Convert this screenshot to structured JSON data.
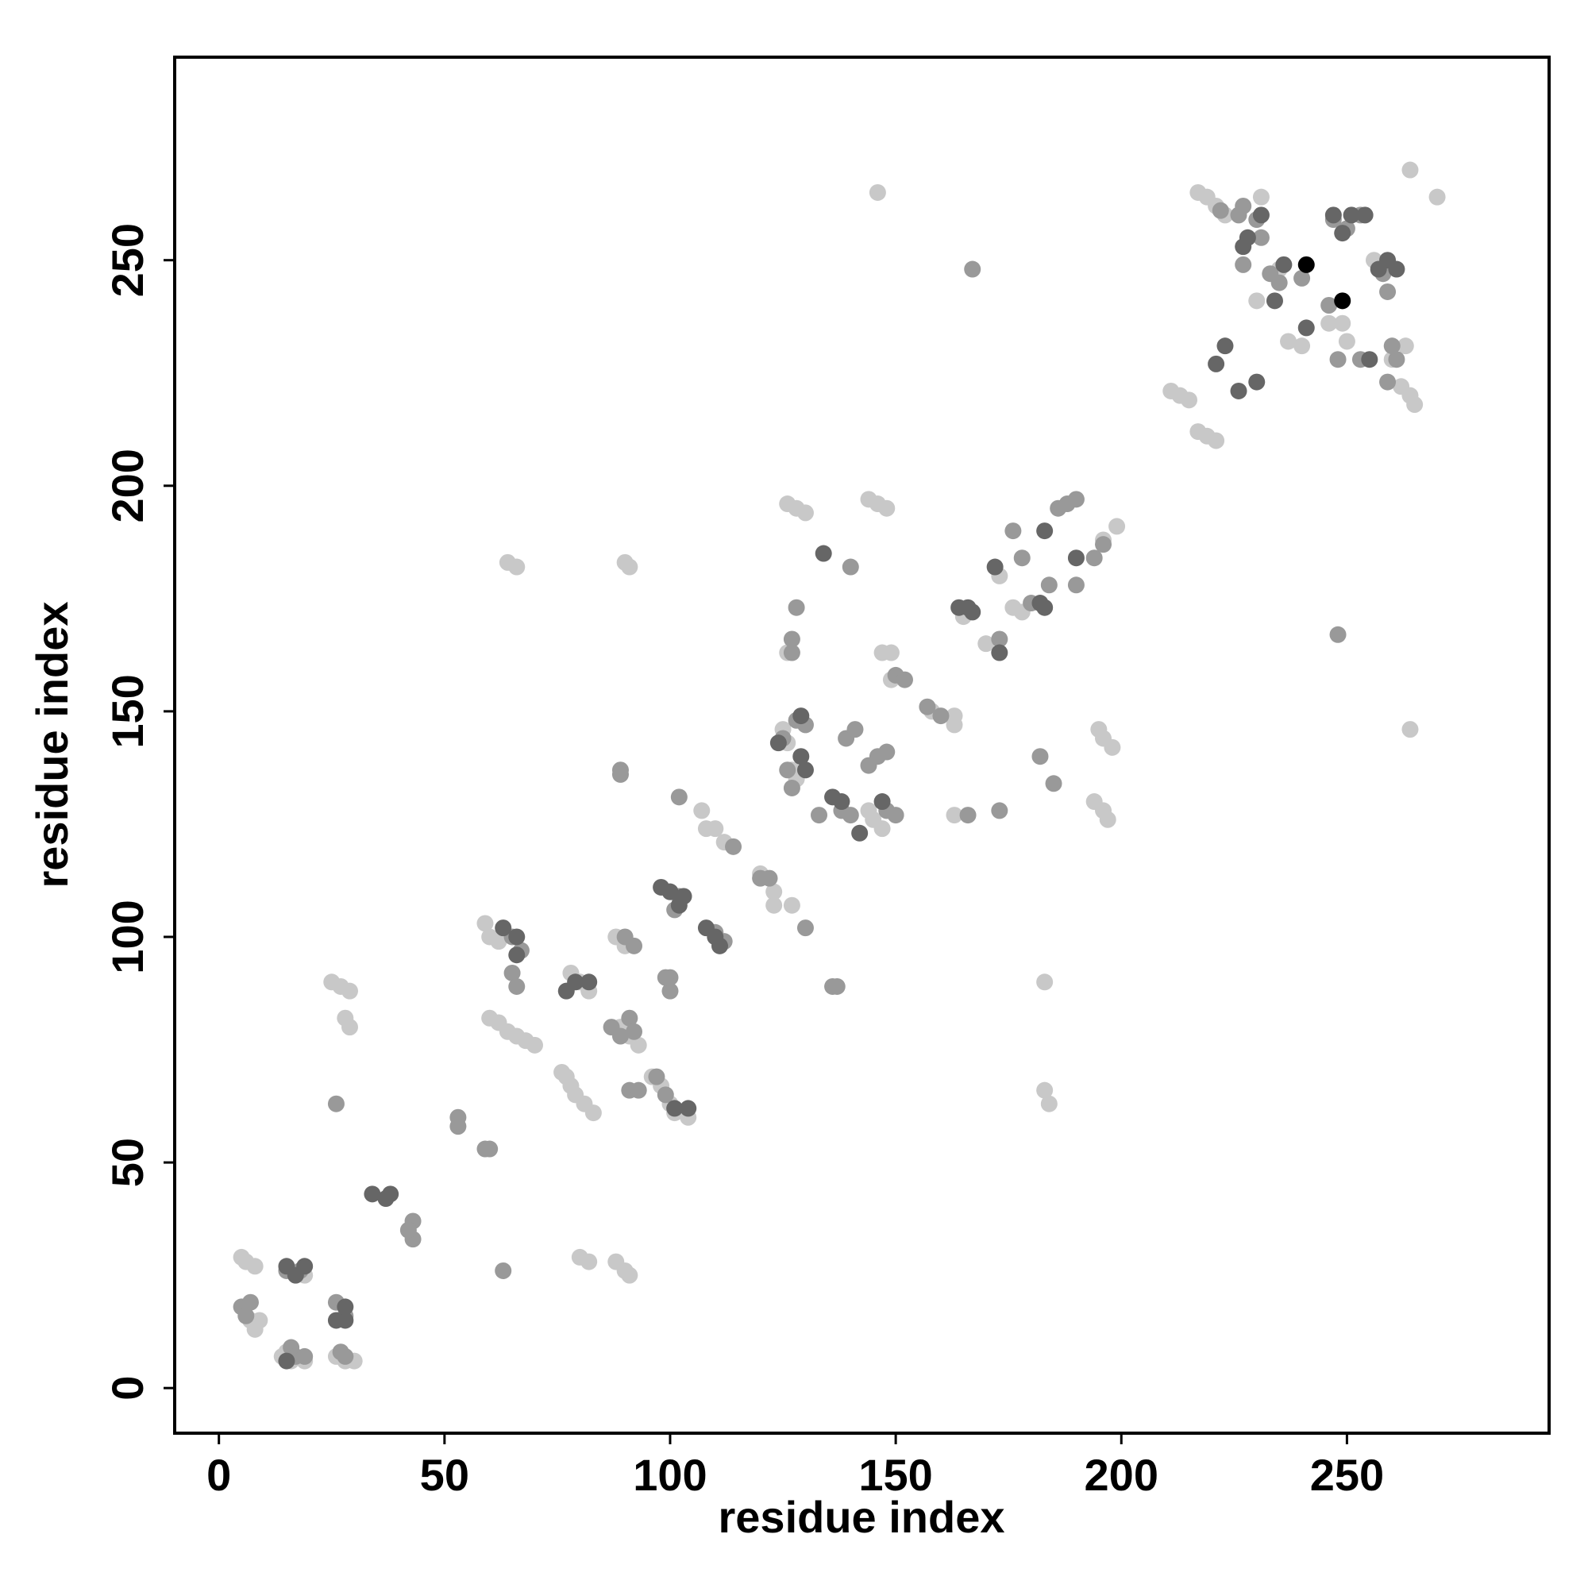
{
  "chart_data": {
    "type": "scatter",
    "xlabel": "residue index",
    "ylabel": "residue index",
    "xlim": [
      -9.8,
      294.8
    ],
    "ylim": [
      -10,
      295
    ],
    "xticks": [
      0,
      50,
      100,
      150,
      200,
      250
    ],
    "yticks": [
      0,
      50,
      100,
      150,
      200,
      250
    ],
    "series": [
      {
        "color": "#c8c8c8",
        "x": [
          5,
          6,
          8,
          7,
          8,
          9,
          14,
          15,
          16,
          19,
          26,
          28,
          30,
          19,
          25,
          27,
          29,
          28,
          29,
          80,
          82,
          88,
          90,
          91,
          59,
          60,
          62,
          60,
          62,
          64,
          66,
          68,
          70,
          76,
          77,
          78,
          79,
          81,
          83,
          78,
          80,
          82,
          89,
          91,
          93,
          88,
          90,
          96,
          98,
          100,
          101,
          104,
          64,
          66,
          90,
          91,
          107,
          108,
          110,
          112,
          120,
          123,
          123,
          127,
          126,
          128,
          130,
          144,
          146,
          148,
          147,
          149,
          149,
          158,
          163,
          163,
          163,
          165,
          170,
          176,
          178,
          173,
          183,
          183,
          184,
          195,
          196,
          198,
          194,
          196,
          197,
          199,
          196,
          125,
          126,
          127,
          128,
          144,
          145,
          147,
          211,
          213,
          215,
          217,
          219,
          221,
          217,
          219,
          221,
          223,
          231,
          230,
          236,
          235,
          237,
          240,
          246,
          249,
          250,
          256,
          258,
          260,
          263,
          262,
          264,
          265,
          146,
          264,
          264,
          270,
          126
        ],
        "y": [
          29,
          28,
          27,
          15,
          13,
          15,
          7,
          8,
          6,
          6,
          7,
          6,
          6,
          25,
          90,
          89,
          88,
          82,
          80,
          29,
          28,
          28,
          26,
          25,
          103,
          100,
          99,
          82,
          81,
          79,
          78,
          77,
          76,
          70,
          69,
          67,
          65,
          63,
          61,
          92,
          90,
          88,
          80,
          78,
          76,
          100,
          98,
          69,
          67,
          63,
          61,
          60,
          183,
          182,
          183,
          182,
          128,
          124,
          124,
          121,
          114,
          110,
          107,
          107,
          196,
          195,
          194,
          197,
          196,
          195,
          163,
          163,
          157,
          150,
          149,
          147,
          127,
          171,
          165,
          173,
          172,
          180,
          90,
          66,
          63,
          146,
          144,
          142,
          130,
          128,
          126,
          191,
          188,
          146,
          143,
          137,
          135,
          128,
          126,
          124,
          221,
          220,
          219,
          212,
          211,
          210,
          265,
          264,
          262,
          260,
          264,
          241,
          249,
          248,
          232,
          231,
          236,
          236,
          232,
          250,
          249,
          228,
          231,
          222,
          220,
          218,
          265,
          146,
          270,
          264,
          163
        ]
      },
      {
        "color": "#999999",
        "x": [
          5,
          7,
          6,
          15,
          18,
          16,
          17,
          19,
          26,
          28,
          27,
          28,
          26,
          63,
          53,
          53,
          59,
          60,
          43,
          43,
          42,
          65,
          66,
          65,
          67,
          89,
          89,
          87,
          89,
          91,
          92,
          91,
          93,
          90,
          92,
          100,
          100,
          99,
          97,
          99,
          100,
          102,
          101,
          102,
          110,
          112,
          114,
          120,
          122,
          127,
          127,
          128,
          126,
          125,
          128,
          130,
          127,
          130,
          133,
          136,
          137,
          139,
          141,
          140,
          144,
          146,
          148,
          138,
          140,
          148,
          150,
          150,
          152,
          157,
          160,
          166,
          167,
          173,
          173,
          176,
          178,
          180,
          184,
          186,
          188,
          190,
          190,
          194,
          196,
          182,
          185,
          248,
          222,
          227,
          227,
          231,
          230,
          233,
          235,
          240,
          246,
          248,
          253,
          258,
          259,
          260,
          261,
          259,
          226,
          247,
          250,
          253
        ],
        "y": [
          18,
          19,
          16,
          26,
          26,
          9,
          7,
          7,
          19,
          16,
          8,
          7,
          63,
          26,
          60,
          58,
          53,
          53,
          37,
          33,
          35,
          92,
          89,
          100,
          97,
          137,
          136,
          80,
          78,
          82,
          79,
          66,
          66,
          100,
          98,
          91,
          88,
          91,
          69,
          65,
          110,
          109,
          106,
          131,
          101,
          99,
          120,
          113,
          113,
          166,
          163,
          173,
          137,
          144,
          148,
          147,
          133,
          102,
          127,
          89,
          89,
          144,
          146,
          182,
          138,
          140,
          141,
          128,
          127,
          128,
          127,
          158,
          157,
          151,
          149,
          127,
          248,
          166,
          128,
          190,
          184,
          174,
          178,
          195,
          196,
          197,
          178,
          184,
          187,
          140,
          134,
          167,
          261,
          262,
          249,
          255,
          259,
          247,
          245,
          246,
          240,
          228,
          228,
          247,
          243,
          231,
          228,
          223,
          260,
          259,
          257,
          260
        ]
      },
      {
        "color": "#666666",
        "x": [
          15,
          17,
          19,
          15,
          26,
          28,
          28,
          34,
          37,
          38,
          63,
          66,
          66,
          79,
          77,
          82,
          100,
          98,
          103,
          102,
          101,
          104,
          108,
          110,
          111,
          124,
          129,
          130,
          129,
          134,
          136,
          138,
          142,
          147,
          164,
          166,
          167,
          173,
          172,
          182,
          183,
          183,
          190,
          223,
          221,
          226,
          230,
          228,
          227,
          231,
          234,
          236,
          241,
          247,
          249,
          251,
          254,
          257,
          259,
          261,
          255
        ],
        "y": [
          27,
          25,
          27,
          6,
          15,
          15,
          18,
          43,
          42,
          43,
          102,
          100,
          96,
          90,
          88,
          90,
          110,
          111,
          109,
          107,
          62,
          62,
          102,
          100,
          98,
          143,
          149,
          137,
          140,
          185,
          131,
          130,
          123,
          130,
          173,
          173,
          172,
          163,
          182,
          174,
          173,
          190,
          184,
          231,
          227,
          221,
          223,
          255,
          253,
          260,
          241,
          249,
          235,
          260,
          256,
          260,
          260,
          248,
          250,
          248,
          228
        ]
      },
      {
        "color": "#000000",
        "x": [
          241,
          249
        ],
        "y": [
          249,
          241
        ]
      }
    ]
  }
}
